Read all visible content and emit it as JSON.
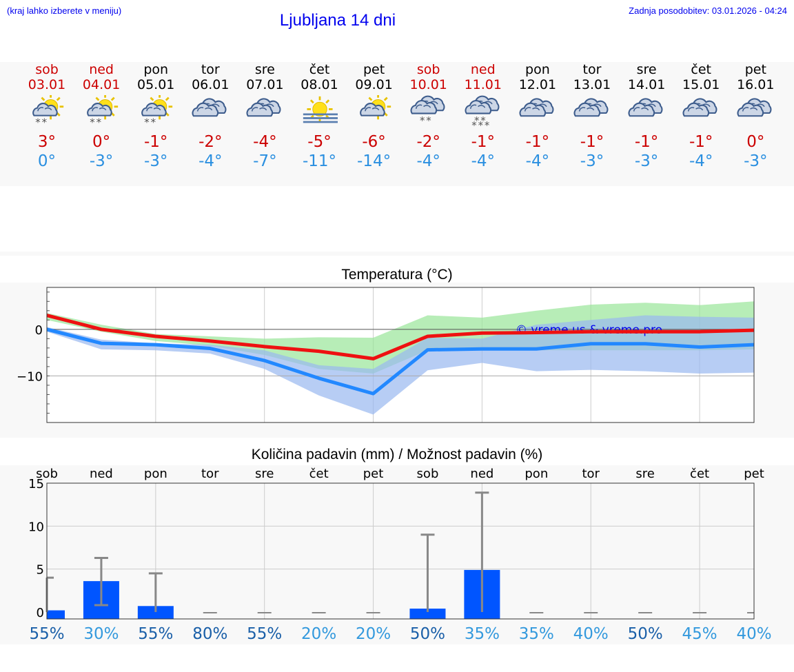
{
  "header": {
    "hint": "(kraj lahko izberete v meniju)",
    "title": "Ljubljana 14 dni",
    "updated": "Zadnja posodobitev: 03.01.2026 - 04:24"
  },
  "days": [
    {
      "name": "sob",
      "date": "03.01",
      "weekend": true,
      "icon": "sun-cloud-snow-icon",
      "max": "3°",
      "min": "0°"
    },
    {
      "name": "ned",
      "date": "04.01",
      "weekend": true,
      "icon": "sun-cloud-snow-icon",
      "max": "0°",
      "min": "-3°"
    },
    {
      "name": "pon",
      "date": "05.01",
      "weekend": false,
      "icon": "sun-cloud-snow-icon",
      "max": "-1°",
      "min": "-3°"
    },
    {
      "name": "tor",
      "date": "06.01",
      "weekend": false,
      "icon": "cloudy-icon",
      "max": "-2°",
      "min": "-4°"
    },
    {
      "name": "sre",
      "date": "07.01",
      "weekend": false,
      "icon": "cloudy-icon",
      "max": "-4°",
      "min": "-7°"
    },
    {
      "name": "čet",
      "date": "08.01",
      "weekend": false,
      "icon": "sun-fog-icon",
      "max": "-5°",
      "min": "-11°"
    },
    {
      "name": "pet",
      "date": "09.01",
      "weekend": false,
      "icon": "sun-cloud-icon",
      "max": "-6°",
      "min": "-14°"
    },
    {
      "name": "sob",
      "date": "10.01",
      "weekend": true,
      "icon": "cloud-snow-icon",
      "max": "-2°",
      "min": "-4°"
    },
    {
      "name": "ned",
      "date": "11.01",
      "weekend": true,
      "icon": "cloud-heavy-snow-icon",
      "max": "-1°",
      "min": "-4°"
    },
    {
      "name": "pon",
      "date": "12.01",
      "weekend": false,
      "icon": "cloudy-icon",
      "max": "-1°",
      "min": "-4°"
    },
    {
      "name": "tor",
      "date": "13.01",
      "weekend": false,
      "icon": "cloudy-icon",
      "max": "-1°",
      "min": "-3°"
    },
    {
      "name": "sre",
      "date": "14.01",
      "weekend": false,
      "icon": "cloudy-icon",
      "max": "-1°",
      "min": "-3°"
    },
    {
      "name": "čet",
      "date": "15.01",
      "weekend": false,
      "icon": "cloudy-icon",
      "max": "-1°",
      "min": "-4°"
    },
    {
      "name": "pet",
      "date": "16.01",
      "weekend": false,
      "icon": "cloudy-icon",
      "max": "0°",
      "min": "-3°"
    }
  ],
  "chart_data": [
    {
      "type": "line",
      "title": "Temperatura (°C)",
      "watermark": "© vreme.us & vreme.pro",
      "x": [
        0,
        1,
        2,
        3,
        4,
        5,
        6,
        7,
        8,
        9,
        10,
        11,
        12,
        13
      ],
      "ylim": [
        -20,
        9
      ],
      "yticks": [
        0,
        -10
      ],
      "ytick_labels": [
        "0",
        "−10"
      ],
      "series": [
        {
          "name": "max",
          "color": "#ee1111",
          "values": [
            3,
            0,
            -1.5,
            -2.5,
            -3.7,
            -4.7,
            -6.3,
            -1.5,
            -0.8,
            -0.7,
            -0.5,
            -0.5,
            -0.5,
            -0.2
          ]
        },
        {
          "name": "min",
          "color": "#2288ff",
          "values": [
            0,
            -3,
            -3.3,
            -4.1,
            -6.7,
            -10.5,
            -13.8,
            -4.4,
            -4.2,
            -4.2,
            -3.1,
            -3.1,
            -3.8,
            -3.3
          ]
        }
      ],
      "bands": [
        {
          "name": "max-range",
          "color": "#99e699",
          "low": [
            2,
            -0.5,
            -2.5,
            -3.5,
            -5.5,
            -8.5,
            -9.5,
            -4.5,
            -4.3,
            -4.5,
            -4.5,
            -4.5,
            -4.5,
            -4.3
          ],
          "high": [
            3.5,
            1.0,
            -1.0,
            -1.5,
            -2.0,
            -1.7,
            -1.8,
            3.0,
            2.5,
            4.0,
            5.3,
            5.7,
            5.2,
            6.0
          ]
        },
        {
          "name": "min-range",
          "color": "#99b8f0",
          "low": [
            -0.5,
            -4.3,
            -4.5,
            -5.2,
            -8.5,
            -14.2,
            -18.3,
            -8.8,
            -7.2,
            -9.0,
            -8.7,
            -9.0,
            -9.5,
            -9.3
          ],
          "high": [
            0.5,
            -2.2,
            -3.0,
            -3.3,
            -4.5,
            -7.7,
            -8.5,
            -1.8,
            -2.0,
            1.0,
            2.0,
            3.0,
            2.7,
            2.5
          ]
        }
      ]
    },
    {
      "type": "bar",
      "title": "Količina padavin (mm) / Možnost padavin (%)",
      "categories": [
        "sob",
        "ned",
        "pon",
        "tor",
        "sre",
        "čet",
        "pet",
        "sob",
        "ned",
        "pon",
        "tor",
        "sre",
        "čet",
        "pet"
      ],
      "values": [
        0.2,
        3.6,
        0.7,
        0,
        0,
        0,
        0,
        0.4,
        4.9,
        0,
        0,
        0,
        0,
        0
      ],
      "error_high": [
        4,
        6.3,
        4.5,
        0,
        0,
        0,
        0,
        9,
        13.9,
        0,
        0,
        0,
        0,
        0
      ],
      "error_low": [
        0,
        0.8,
        0,
        0,
        0,
        0,
        0,
        0,
        0,
        0,
        0,
        0,
        0,
        0
      ],
      "ylim": [
        -0.8,
        15
      ],
      "yticks": [
        0,
        5,
        10,
        15
      ],
      "bar_color": "#0055ff",
      "probability": [
        "55%",
        "30%",
        "55%",
        "80%",
        "55%",
        "20%",
        "20%",
        "50%",
        "35%",
        "35%",
        "40%",
        "50%",
        "45%",
        "40%"
      ],
      "probability_colors": [
        "#1a5fa8",
        "#3399dd",
        "#1a5fa8",
        "#1a5fa8",
        "#1a5fa8",
        "#3399dd",
        "#3399dd",
        "#1a5fa8",
        "#3399dd",
        "#3399dd",
        "#3399dd",
        "#1a5fa8",
        "#3399dd",
        "#3399dd"
      ]
    }
  ]
}
